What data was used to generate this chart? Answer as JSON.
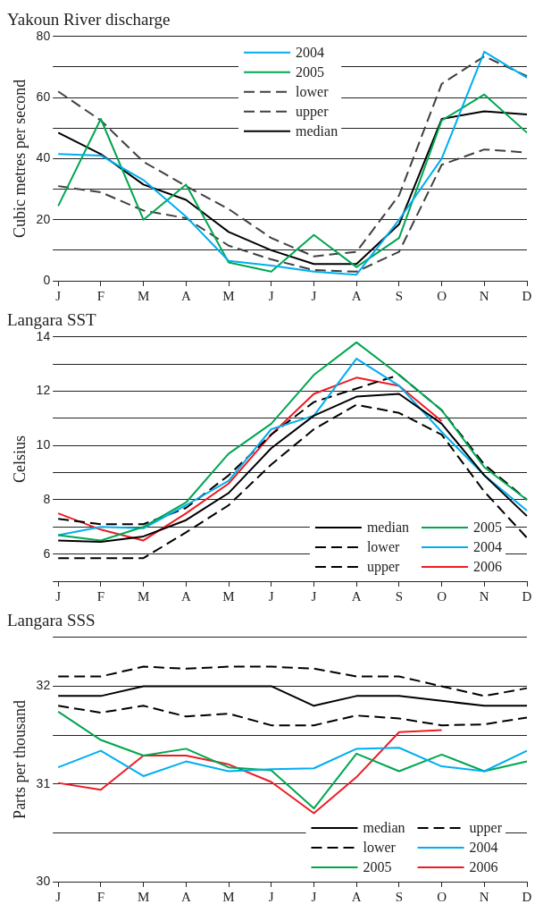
{
  "chart_data": [
    {
      "type": "line",
      "title": "Yakoun River discharge",
      "ylabel": "Cubic metres per second",
      "categories": [
        "J",
        "F",
        "M",
        "A",
        "M",
        "J",
        "J",
        "A",
        "S",
        "O",
        "N",
        "D"
      ],
      "ylim": [
        0,
        80
      ],
      "yticks": [
        0,
        {
          "value": 10,
          "label": null
        },
        20,
        {
          "value": 30,
          "label": null
        },
        40,
        {
          "value": 50,
          "label": null
        },
        60,
        {
          "value": 70,
          "label": null
        },
        80
      ],
      "grid": "y",
      "legend": "top",
      "series": [
        {
          "name": "2004",
          "color": "#00aeef",
          "line_style": "solid",
          "values": [
            41.5,
            41,
            33,
            21,
            6.5,
            5,
            3,
            2,
            20,
            40,
            75,
            66.5
          ]
        },
        {
          "name": "2005",
          "color": "#00a651",
          "line_style": "solid",
          "values": [
            24.5,
            53,
            20,
            31.5,
            6,
            3,
            15,
            4.5,
            14,
            52.5,
            61,
            48.5
          ]
        },
        {
          "name": "lower",
          "color": "#404040",
          "line_style": "dashed",
          "values": [
            31,
            29,
            23,
            20.5,
            11.5,
            7,
            3.5,
            3,
            9.5,
            38,
            43,
            42
          ]
        },
        {
          "name": "upper",
          "color": "#404040",
          "line_style": "dashed",
          "values": [
            62,
            52.5,
            39,
            31,
            23.5,
            14,
            8,
            9.5,
            28,
            64.5,
            73.5,
            67
          ]
        },
        {
          "name": "median",
          "color": "#000000",
          "line_style": "solid",
          "values": [
            48.5,
            41.5,
            31.5,
            26.5,
            16,
            10,
            5.5,
            5.5,
            18.5,
            53,
            55.5,
            54.5
          ]
        }
      ]
    },
    {
      "type": "line",
      "title": "Langara SST",
      "ylabel": "Celsius",
      "categories": [
        "J",
        "F",
        "M",
        "A",
        "M",
        "J",
        "J",
        "A",
        "S",
        "O",
        "N",
        "D"
      ],
      "ylim": [
        5,
        14
      ],
      "yticks": [
        {
          "value": 5,
          "label": null
        },
        6,
        {
          "value": 7,
          "label": null
        },
        8,
        {
          "value": 9,
          "label": null
        },
        10,
        {
          "value": 11,
          "label": null
        },
        12,
        {
          "value": 13,
          "label": null
        },
        14
      ],
      "grid": "y",
      "legend": "bottom right",
      "series": [
        {
          "name": "median",
          "color": "#000000",
          "line_style": "solid",
          "values": [
            6.5,
            6.45,
            6.65,
            7.25,
            8.25,
            9.9,
            11.1,
            11.8,
            11.9,
            10.8,
            8.9,
            7.4
          ]
        },
        {
          "name": "2005",
          "color": "#00a651",
          "line_style": "solid",
          "values": [
            6.7,
            6.5,
            7.0,
            7.9,
            9.7,
            10.8,
            12.6,
            13.8,
            12.6,
            11.3,
            9.2,
            8.0
          ]
        },
        {
          "name": "lower",
          "color": "#000000",
          "line_style": "dashed",
          "values": [
            5.85,
            5.85,
            5.85,
            6.8,
            7.8,
            9.3,
            10.6,
            11.5,
            11.2,
            10.4,
            8.3,
            6.6
          ]
        },
        {
          "name": "2004",
          "color": "#00aeef",
          "line_style": "solid",
          "values": [
            6.7,
            7.0,
            6.95,
            7.8,
            8.7,
            10.6,
            11.1,
            13.2,
            12.2,
            10.5,
            8.9,
            7.6
          ]
        },
        {
          "name": "upper",
          "color": "#000000",
          "line_style": "dashed",
          "values": [
            7.3,
            7.1,
            7.1,
            7.7,
            8.9,
            10.4,
            11.6,
            12.1,
            12.6,
            11.3,
            9.3,
            8.0
          ]
        },
        {
          "name": "2006",
          "color": "#ed1c24",
          "line_style": "solid",
          "values": [
            7.5,
            6.9,
            6.5,
            7.5,
            8.6,
            10.4,
            11.9,
            12.5,
            12.2,
            10.9,
            null,
            null
          ]
        }
      ]
    },
    {
      "type": "line",
      "title": "Langara SSS",
      "ylabel": "Parts per thousand",
      "categories": [
        "J",
        "F",
        "M",
        "A",
        "M",
        "J",
        "J",
        "A",
        "S",
        "O",
        "N",
        "D"
      ],
      "ylim": [
        30,
        32.5
      ],
      "yticks": [
        30,
        {
          "value": 30.5,
          "label": null
        },
        31,
        {
          "value": 31.5,
          "label": null
        },
        32,
        {
          "value": 32.5,
          "label": null
        }
      ],
      "grid": "y",
      "legend": "bottom right",
      "series": [
        {
          "name": "median",
          "color": "#000000",
          "line_style": "solid",
          "values": [
            31.9,
            31.9,
            32,
            32,
            32,
            32,
            31.8,
            31.9,
            31.9,
            31.85,
            31.8,
            31.8
          ]
        },
        {
          "name": "upper",
          "color": "#000000",
          "line_style": "dashed",
          "values": [
            32.1,
            32.1,
            32.2,
            32.18,
            32.2,
            32.2,
            32.18,
            32.1,
            32.1,
            32.0,
            31.9,
            31.98
          ]
        },
        {
          "name": "lower",
          "color": "#000000",
          "line_style": "dashed",
          "values": [
            31.8,
            31.73,
            31.8,
            31.69,
            31.72,
            31.6,
            31.6,
            31.7,
            31.67,
            31.6,
            31.61,
            31.68
          ]
        },
        {
          "name": "2004",
          "color": "#00aeef",
          "line_style": "solid",
          "values": [
            31.17,
            31.34,
            31.08,
            31.23,
            31.13,
            31.15,
            31.16,
            31.36,
            31.37,
            31.18,
            31.13,
            31.34
          ]
        },
        {
          "name": "2005",
          "color": "#00a651",
          "line_style": "solid",
          "values": [
            31.74,
            31.45,
            31.29,
            31.36,
            31.17,
            31.14,
            30.75,
            31.31,
            31.13,
            31.3,
            31.13,
            31.23
          ]
        },
        {
          "name": "2006",
          "color": "#ed1c24",
          "line_style": "solid",
          "values": [
            31.01,
            30.94,
            31.29,
            31.29,
            31.2,
            31.02,
            30.7,
            31.07,
            31.53,
            31.55,
            null,
            null
          ]
        }
      ]
    }
  ]
}
